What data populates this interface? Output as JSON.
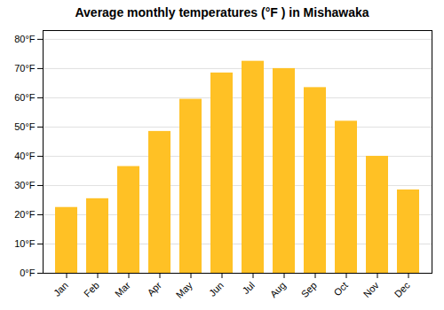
{
  "chart_data": {
    "type": "bar",
    "title": "Average monthly temperatures (°F ) in Mishawaka",
    "categories": [
      "Jan",
      "Feb",
      "Mar",
      "Apr",
      "May",
      "Jun",
      "Jul",
      "Aug",
      "Sep",
      "Oct",
      "Nov",
      "Dec"
    ],
    "values": [
      22.5,
      25.5,
      36.5,
      48.5,
      59.5,
      68.5,
      72.5,
      70.0,
      63.5,
      52.0,
      40.0,
      28.5
    ],
    "color": "#FFC125",
    "ylim": [
      0,
      83
    ],
    "yticks": [
      {
        "value": 0,
        "label": "0°F"
      },
      {
        "value": 10,
        "label": "10°F"
      },
      {
        "value": 20,
        "label": "20°F"
      },
      {
        "value": 30,
        "label": "30°F"
      },
      {
        "value": 40,
        "label": "40°F"
      },
      {
        "value": 50,
        "label": "50°F"
      },
      {
        "value": 60,
        "label": "60°F"
      },
      {
        "value": 70,
        "label": "70°F"
      },
      {
        "value": 80,
        "label": "80°F"
      }
    ],
    "grid": true
  }
}
